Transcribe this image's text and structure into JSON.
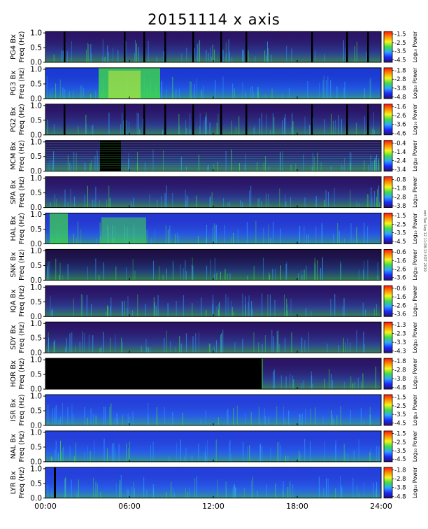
{
  "chart_data": {
    "type": "heatmap",
    "title": "20151114 x axis",
    "xlabel": "",
    "x_ticks": [
      "00:00",
      "06:00",
      "12:00",
      "18:00",
      "24:00"
    ],
    "xlim_hours": [
      0,
      24
    ],
    "panel_ylabel_suffix": "Bx",
    "panel_ylabel_line2": "Freq (Hz)",
    "y_ticks": [
      "0.0",
      "0.5",
      "1.0"
    ],
    "ylim": [
      0,
      1.05
    ],
    "colorbar_label": "Log₁₀ Power",
    "colormap": [
      "#2a1066",
      "#1a2aff",
      "#2fa6ff",
      "#3fdc4a",
      "#f6f61e",
      "#ff8a00",
      "#ff1010"
    ],
    "data_gap_color": "#000000",
    "panels": [
      {
        "station": "PG4",
        "cbar_ticks": [
          "-1.5",
          "-2.5",
          "-3.5",
          "-4.5"
        ],
        "cbar_range": [
          -4.8,
          -1.2
        ]
      },
      {
        "station": "PG3",
        "cbar_ticks": [
          "-1.8",
          "-2.8",
          "-3.8",
          "-4.8"
        ],
        "cbar_range": [
          -5.0,
          -1.5
        ]
      },
      {
        "station": "PG2",
        "cbar_ticks": [
          "-1.6",
          "-2.6",
          "-3.6",
          "-4.6"
        ],
        "cbar_range": [
          -4.8,
          -1.3
        ]
      },
      {
        "station": "MCM",
        "cbar_ticks": [
          "-0.4",
          "-1.4",
          "-2.4",
          "-3.4"
        ],
        "cbar_range": [
          -3.6,
          -0.1
        ]
      },
      {
        "station": "SPA",
        "cbar_ticks": [
          "-0.8",
          "-1.8",
          "-2.8",
          "-3.8"
        ],
        "cbar_range": [
          -4.0,
          -0.5
        ]
      },
      {
        "station": "HAL",
        "cbar_ticks": [
          "-1.5",
          "-2.5",
          "-3.5",
          "-4.5"
        ],
        "cbar_range": [
          -4.8,
          -1.2
        ]
      },
      {
        "station": "SNK",
        "cbar_ticks": [
          "-0.6",
          "-1.6",
          "-2.6",
          "-3.6"
        ],
        "cbar_range": [
          -3.9,
          -0.3
        ]
      },
      {
        "station": "IQA",
        "cbar_ticks": [
          "-0.6",
          "-1.6",
          "-2.6",
          "-3.6"
        ],
        "cbar_range": [
          -3.9,
          -0.3
        ]
      },
      {
        "station": "SDY",
        "cbar_ticks": [
          "-1.3",
          "-2.3",
          "-3.3",
          "-4.3"
        ],
        "cbar_range": [
          -4.5,
          -1.0
        ]
      },
      {
        "station": "HOR",
        "cbar_ticks": [
          "-1.8",
          "-2.8",
          "-3.8",
          "-4.8"
        ],
        "cbar_range": [
          -5.0,
          -1.5
        ]
      },
      {
        "station": "ISR",
        "cbar_ticks": [
          "-1.5",
          "-2.5",
          "-3.5",
          "-4.5"
        ],
        "cbar_range": [
          -4.8,
          -1.2
        ]
      },
      {
        "station": "NAL",
        "cbar_ticks": [
          "-1.5",
          "-2.5",
          "-3.5",
          "-4.5"
        ],
        "cbar_range": [
          -4.8,
          -1.2
        ]
      },
      {
        "station": "LYR",
        "cbar_ticks": [
          "-1.8",
          "-2.8",
          "-3.8",
          "-4.8"
        ],
        "cbar_range": [
          -5.0,
          -1.5
        ]
      }
    ]
  },
  "footer_note": "rett Tue Sep 12 11:08:13 EDT 2019"
}
